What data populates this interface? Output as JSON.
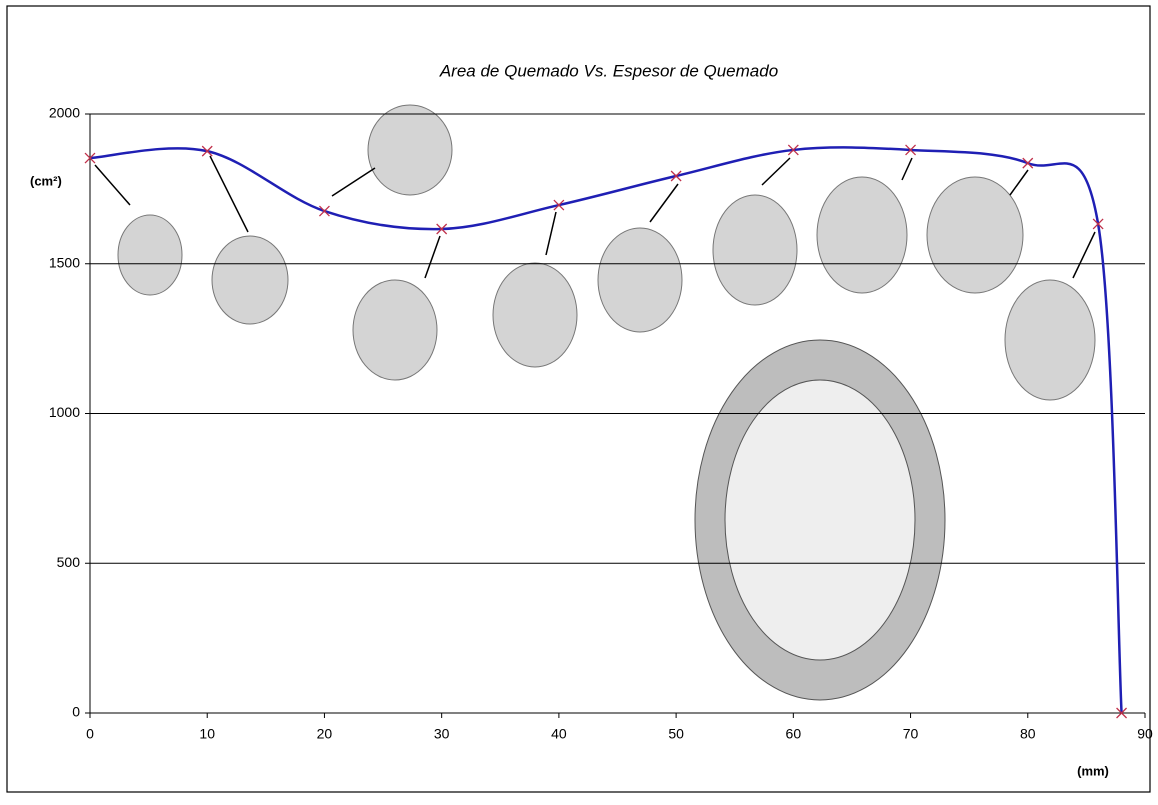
{
  "chart_data": {
    "type": "line",
    "title": "Area de Quemado Vs. Espesor de Quemado",
    "y_label": "(cm²)",
    "x_label": "(mm)",
    "x": [
      0,
      10,
      20,
      30,
      40,
      50,
      60,
      70,
      80,
      86,
      88
    ],
    "series": [
      {
        "color": "#1f1fb4",
        "marker_color": "#c0304a",
        "values": [
          1853,
          1876,
          1676,
          1616,
          1696,
          1793,
          1880,
          1880,
          1836,
          1633,
          0
        ]
      }
    ],
    "xlim": [
      0,
      90
    ],
    "xticks": [
      0,
      10,
      20,
      30,
      40,
      50,
      60,
      70,
      80,
      90
    ],
    "ylim": [
      0,
      2000
    ],
    "yticks": [
      0,
      500,
      1000,
      1500,
      2000
    ],
    "grid": true
  }
}
